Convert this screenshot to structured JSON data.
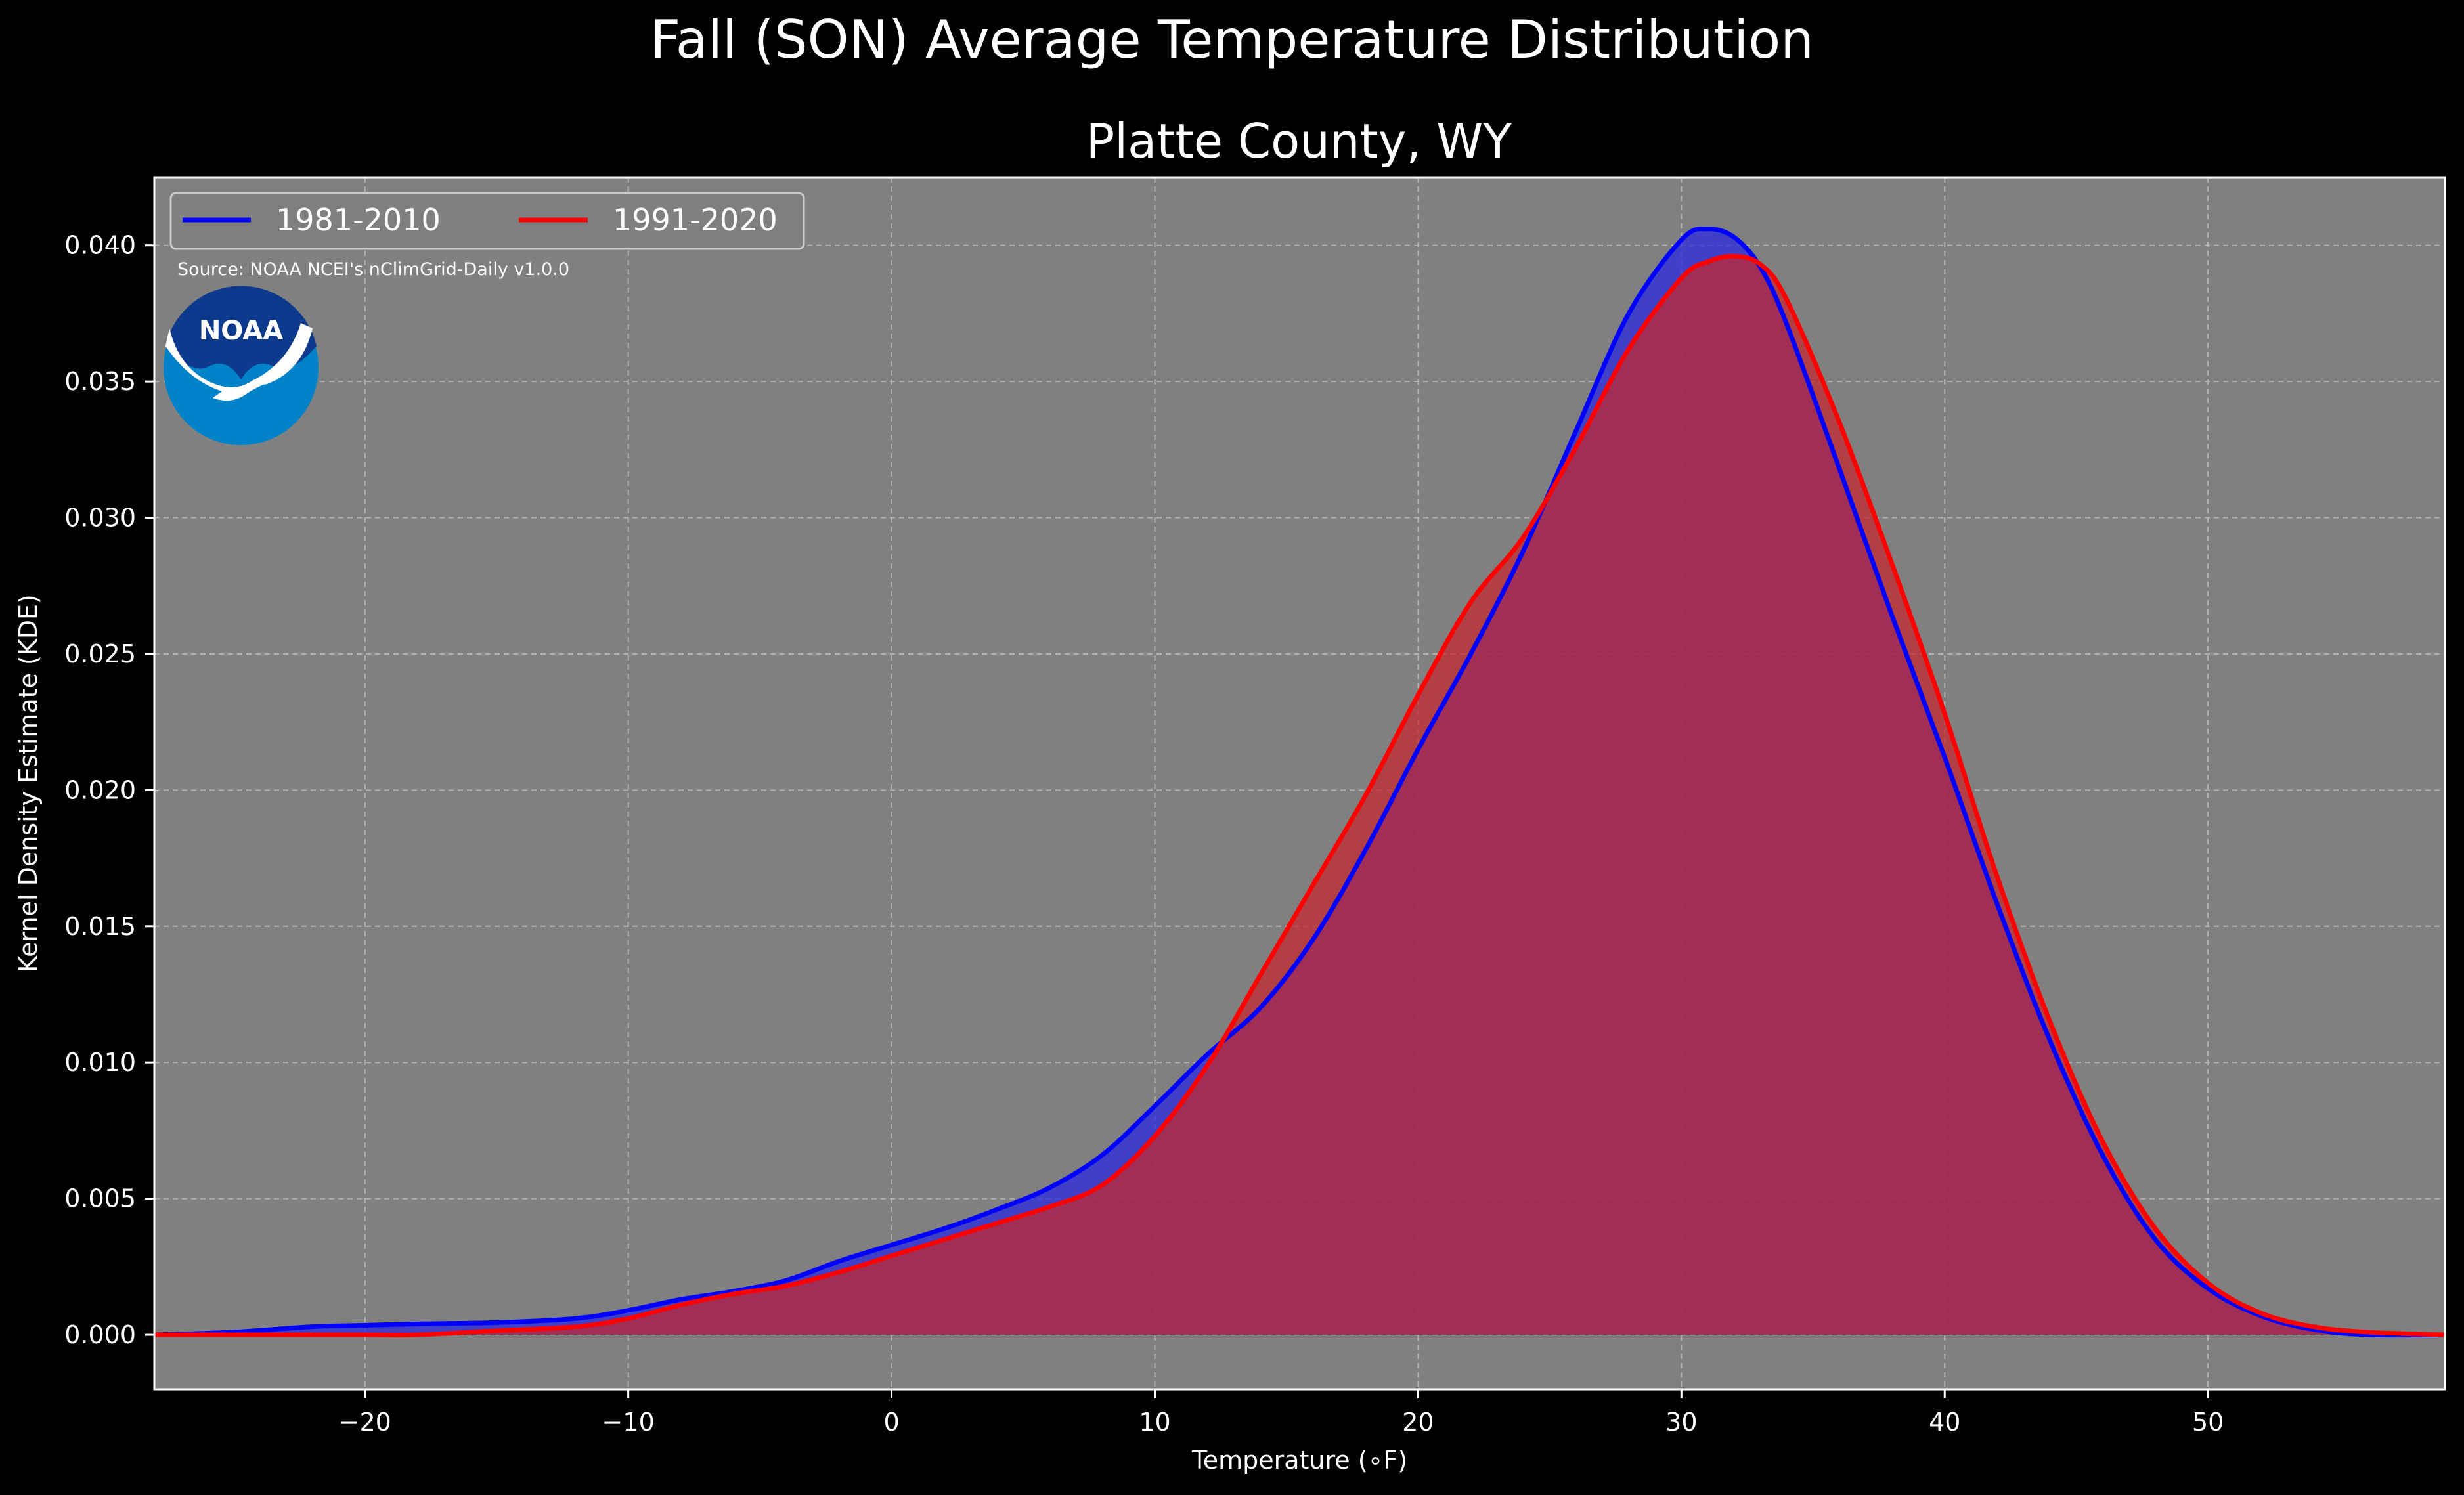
{
  "chart_data": {
    "type": "area",
    "title": "Fall (SON) Average Temperature Distribution",
    "subtitle": "Platte County, WY",
    "xlabel": "Temperature (∘F)",
    "ylabel": "Kernel Density Estimate (KDE)",
    "source": "Source: NOAA NCEI's nClimGrid-Daily v1.0.0",
    "logo_text": "NOAA",
    "xlim": [
      -28,
      59
    ],
    "ylim": [
      -0.002,
      0.0425
    ],
    "grid": true,
    "legend_position": "top-left",
    "x_ticks": [
      -20,
      -10,
      0,
      10,
      20,
      30,
      40,
      50
    ],
    "x_tick_labels": [
      "−20",
      "−10",
      "0",
      "10",
      "20",
      "30",
      "40",
      "50"
    ],
    "y_ticks": [
      0.0,
      0.005,
      0.01,
      0.015,
      0.02,
      0.025,
      0.03,
      0.035,
      0.04
    ],
    "y_tick_labels": [
      "0.000",
      "0.005",
      "0.010",
      "0.015",
      "0.020",
      "0.025",
      "0.030",
      "0.035",
      "0.040"
    ],
    "x": [
      -28,
      -25,
      -22,
      -20,
      -18,
      -15,
      -12,
      -10,
      -8,
      -6,
      -4,
      -2,
      0,
      2,
      4,
      6,
      8,
      10,
      12,
      14,
      16,
      18,
      20,
      22,
      24,
      26,
      28,
      30,
      31,
      32,
      33,
      34,
      36,
      38,
      40,
      42,
      44,
      46,
      48,
      50,
      52,
      54,
      56,
      59
    ],
    "series": [
      {
        "name": "1981-2010",
        "color": "#0000ff",
        "fill": "#2a2ae0",
        "values": [
          0.0,
          0.0001,
          0.0003,
          0.00035,
          0.0004,
          0.00045,
          0.0006,
          0.0009,
          0.0013,
          0.0016,
          0.002,
          0.0027,
          0.0033,
          0.0039,
          0.0046,
          0.0054,
          0.0066,
          0.0084,
          0.0103,
          0.012,
          0.0145,
          0.0178,
          0.0215,
          0.025,
          0.0288,
          0.0332,
          0.0375,
          0.0402,
          0.0406,
          0.0403,
          0.0392,
          0.0371,
          0.0318,
          0.0264,
          0.0212,
          0.0158,
          0.0108,
          0.0066,
          0.0035,
          0.0017,
          0.0007,
          0.0002,
          0.0,
          0.0
        ]
      },
      {
        "name": "1991-2020",
        "color": "#ff0000",
        "fill": "#c22a30",
        "values": [
          0.0,
          0.0,
          0.0,
          0.0,
          0.0,
          0.00015,
          0.0003,
          0.0006,
          0.0011,
          0.0015,
          0.0018,
          0.0023,
          0.0029,
          0.0035,
          0.0041,
          0.0047,
          0.0055,
          0.0073,
          0.0099,
          0.0132,
          0.0165,
          0.0198,
          0.0235,
          0.0269,
          0.0293,
          0.0326,
          0.0362,
          0.0388,
          0.0394,
          0.0396,
          0.0393,
          0.038,
          0.0335,
          0.0283,
          0.0228,
          0.0168,
          0.0115,
          0.0071,
          0.0039,
          0.0019,
          0.0008,
          0.0003,
          0.0001,
          0.0
        ]
      }
    ]
  }
}
